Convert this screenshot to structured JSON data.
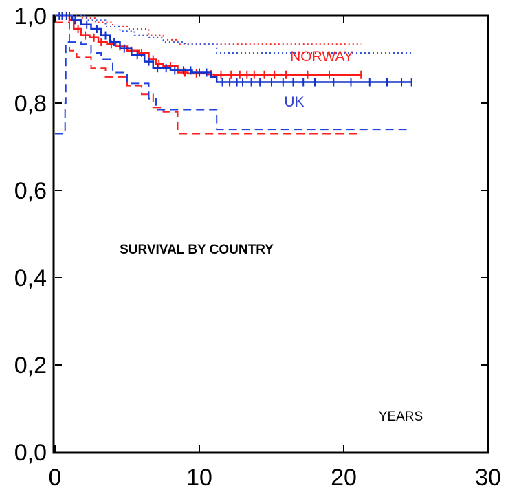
{
  "chart_data": {
    "type": "line",
    "title": "SURVIVAL BY COUNTRY",
    "xlabel": "YEARS",
    "ylabel": "",
    "xlim": [
      0,
      30
    ],
    "ylim": [
      0.0,
      1.0
    ],
    "x_ticks": [
      0,
      10,
      20,
      30
    ],
    "x_tick_labels": [
      "0",
      "10",
      "20",
      "30"
    ],
    "y_ticks": [
      0.0,
      0.2,
      0.4,
      0.6,
      0.8,
      1.0
    ],
    "y_tick_labels": [
      "0,0",
      "0,2",
      "0,4",
      "0,6",
      "0,8",
      "1,0"
    ],
    "grid": false,
    "legend": "none",
    "annotations": [
      {
        "text": "NORWAY",
        "color": "#ff2020"
      },
      {
        "text": "UK",
        "color": "#3344cc"
      }
    ],
    "series": [
      {
        "name": "NORWAY",
        "role": "estimate",
        "color": "#ff1a1a",
        "style": "solid",
        "points": [
          [
            0,
            1.0
          ],
          [
            1.0,
            0.99
          ],
          [
            1.3,
            0.97
          ],
          [
            1.8,
            0.955
          ],
          [
            2.4,
            0.95
          ],
          [
            3.0,
            0.94
          ],
          [
            3.6,
            0.935
          ],
          [
            4.2,
            0.93
          ],
          [
            5.0,
            0.92
          ],
          [
            5.8,
            0.915
          ],
          [
            6.5,
            0.9
          ],
          [
            7.0,
            0.89
          ],
          [
            7.5,
            0.885
          ],
          [
            8.5,
            0.87
          ],
          [
            9.2,
            0.868
          ],
          [
            10.5,
            0.866
          ],
          [
            11.0,
            0.865
          ],
          [
            21.2,
            0.865
          ]
        ],
        "censor_x": [
          1.6,
          2.1,
          2.7,
          3.2,
          3.9,
          4.5,
          5.3,
          6.0,
          6.8,
          7.2,
          8.0,
          9.0,
          9.8,
          10.8,
          11.5,
          12.2,
          12.8,
          13.3,
          13.8,
          14.5,
          15.2,
          16.0,
          17.5,
          19.0,
          21.2
        ]
      },
      {
        "name": "NORWAY",
        "role": "upper",
        "color": "#ff2020",
        "style": "dotted",
        "points": [
          [
            0,
            1.0
          ],
          [
            1.2,
            1.0
          ],
          [
            1.8,
            0.995
          ],
          [
            2.8,
            0.985
          ],
          [
            4.0,
            0.975
          ],
          [
            5.0,
            0.97
          ],
          [
            6.5,
            0.955
          ],
          [
            7.5,
            0.945
          ],
          [
            8.5,
            0.935
          ],
          [
            21.2,
            0.935
          ]
        ]
      },
      {
        "name": "NORWAY",
        "role": "lower",
        "color": "#ff2020",
        "style": "dashed",
        "points": [
          [
            0,
            0.985
          ],
          [
            1.0,
            0.92
          ],
          [
            1.5,
            0.905
          ],
          [
            2.5,
            0.88
          ],
          [
            3.5,
            0.86
          ],
          [
            5.0,
            0.84
          ],
          [
            6.0,
            0.82
          ],
          [
            6.8,
            0.79
          ],
          [
            7.5,
            0.78
          ],
          [
            8.5,
            0.73
          ],
          [
            21.2,
            0.73
          ]
        ]
      },
      {
        "name": "UK",
        "role": "estimate",
        "color": "#1133cc",
        "style": "solid",
        "points": [
          [
            0,
            1.0
          ],
          [
            1.2,
            0.99
          ],
          [
            1.8,
            0.98
          ],
          [
            2.5,
            0.97
          ],
          [
            3.2,
            0.955
          ],
          [
            3.8,
            0.94
          ],
          [
            4.5,
            0.925
          ],
          [
            5.3,
            0.91
          ],
          [
            6.2,
            0.895
          ],
          [
            6.8,
            0.88
          ],
          [
            8.0,
            0.875
          ],
          [
            9.5,
            0.87
          ],
          [
            10.8,
            0.86
          ],
          [
            11.2,
            0.848
          ],
          [
            24.7,
            0.848
          ]
        ],
        "censor_x": [
          0.3,
          0.5,
          0.8,
          1.0,
          1.4,
          2.2,
          2.9,
          3.5,
          4.1,
          4.8,
          5.7,
          6.5,
          7.1,
          7.7,
          8.3,
          8.9,
          9.4,
          10.0,
          10.5,
          11.6,
          12.1,
          12.6,
          13.0,
          13.6,
          14.2,
          15.0,
          15.8,
          16.5,
          17.2,
          18.0,
          19.3,
          20.5,
          21.8,
          23.0,
          24.0,
          24.7
        ]
      },
      {
        "name": "UK",
        "role": "upper",
        "color": "#3355dd",
        "style": "dotted",
        "points": [
          [
            0,
            1.0
          ],
          [
            1.2,
            1.0
          ],
          [
            2.2,
            0.99
          ],
          [
            3.5,
            0.975
          ],
          [
            4.5,
            0.965
          ],
          [
            5.5,
            0.955
          ],
          [
            6.5,
            0.95
          ],
          [
            7.5,
            0.94
          ],
          [
            9.0,
            0.935
          ],
          [
            11.2,
            0.915
          ],
          [
            24.7,
            0.915
          ]
        ]
      },
      {
        "name": "UK",
        "role": "lower",
        "color": "#2244dd",
        "style": "dashed",
        "points": [
          [
            0,
            0.73
          ],
          [
            0.7,
            0.8
          ],
          [
            0.75,
            0.94
          ],
          [
            1.2,
            0.94
          ],
          [
            1.8,
            0.935
          ],
          [
            2.5,
            0.915
          ],
          [
            3.2,
            0.9
          ],
          [
            4.0,
            0.87
          ],
          [
            5.0,
            0.845
          ],
          [
            6.5,
            0.81
          ],
          [
            7.0,
            0.785
          ],
          [
            9.0,
            0.785
          ],
          [
            11.2,
            0.74
          ],
          [
            24.7,
            0.74
          ]
        ]
      }
    ]
  }
}
